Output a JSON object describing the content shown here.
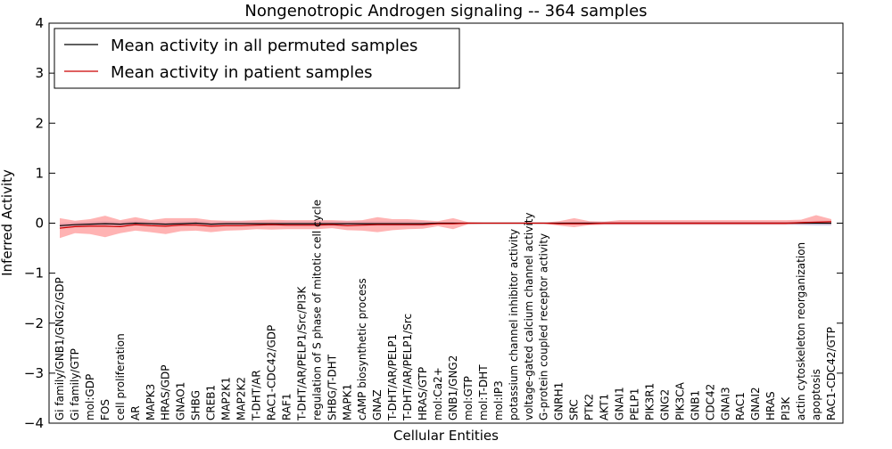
{
  "chart_data": {
    "type": "line",
    "title": "Nongenotropic Androgen signaling -- 364 samples",
    "xlabel": "Cellular Entities",
    "ylabel": "Inferred Activity",
    "ylim": [
      -4,
      4
    ],
    "yticks": [
      "−4",
      "−3",
      "−2",
      "−1",
      "0",
      "1",
      "2",
      "3",
      "4"
    ],
    "grid": false,
    "legend_position": "top-left",
    "categories": [
      "Gi family/GNB1/GNG2/GDP",
      "Gi family/GTP",
      "mol:GDP",
      "FOS",
      "cell proliferation",
      "AR",
      "MAPK3",
      "HRAS/GDP",
      "GNAO1",
      "SHBG",
      "CREB1",
      "MAP2K1",
      "MAP2K2",
      "T-DHT/AR",
      "RAC1-CDC42/GDP",
      "RAF1",
      "T-DHT/AR/PELP1/Src/PI3K",
      "regulation of S phase of mitotic cell cycle",
      "SHBG/T-DHT",
      "MAPK1",
      "cAMP biosynthetic process",
      "GNAZ",
      "T-DHT/AR/PELP1",
      "T-DHT/AR/PELP1/Src",
      "HRAS/GTP",
      "mol:Ca2+",
      "GNB1/GNG2",
      "mol:GTP",
      "mol:T-DHT",
      "mol:IP3",
      "potassium channel inhibitor activity",
      "voltage-gated calcium channel activity",
      "G-protein coupled receptor activity",
      "GNRH1",
      "SRC",
      "PTK2",
      "AKT1",
      "GNAI1",
      "PELP1",
      "PIK3R1",
      "GNG2",
      "PIK3CA",
      "GNB1",
      "CDC42",
      "GNAI3",
      "RAC1",
      "GNAI2",
      "HRAS",
      "PI3K",
      "actin cytoskeleton reorganization",
      "apoptosis",
      "RAC1-CDC42/GTP"
    ],
    "series": [
      {
        "name": "Mean activity in all permuted samples",
        "color": "#000000",
        "band_color": "#8c8ccc",
        "values": [
          -0.05,
          -0.03,
          -0.02,
          -0.01,
          -0.02,
          0.0,
          -0.01,
          -0.02,
          -0.01,
          0.0,
          -0.02,
          -0.01,
          -0.01,
          -0.01,
          -0.01,
          -0.01,
          -0.01,
          -0.01,
          -0.01,
          -0.01,
          -0.01,
          -0.01,
          -0.01,
          -0.01,
          -0.01,
          0.0,
          0.0,
          0.0,
          0.0,
          0.0,
          0.0,
          0.0,
          0.0,
          0.0,
          0.0,
          0.0,
          0.0,
          0.0,
          0.0,
          0.0,
          0.0,
          0.0,
          0.0,
          0.0,
          0.0,
          0.0,
          0.0,
          0.0,
          0.0,
          0.0,
          0.0,
          0.0
        ],
        "lower": [
          -0.1,
          -0.08,
          -0.07,
          -0.06,
          -0.07,
          -0.05,
          -0.06,
          -0.07,
          -0.06,
          -0.05,
          -0.06,
          -0.06,
          -0.06,
          -0.06,
          -0.06,
          -0.06,
          -0.06,
          -0.06,
          -0.06,
          -0.06,
          -0.06,
          -0.06,
          -0.06,
          -0.06,
          -0.06,
          -0.02,
          -0.02,
          -0.01,
          -0.01,
          -0.01,
          -0.01,
          -0.01,
          -0.01,
          -0.02,
          -0.03,
          -0.03,
          -0.03,
          -0.03,
          -0.03,
          -0.03,
          -0.03,
          -0.03,
          -0.03,
          -0.03,
          -0.03,
          -0.03,
          -0.03,
          -0.03,
          -0.03,
          -0.04,
          -0.05,
          -0.05
        ],
        "upper": [
          0.0,
          0.02,
          0.03,
          0.04,
          0.03,
          0.05,
          0.04,
          0.03,
          0.04,
          0.05,
          0.03,
          0.04,
          0.04,
          0.04,
          0.04,
          0.04,
          0.04,
          0.04,
          0.04,
          0.04,
          0.04,
          0.04,
          0.04,
          0.04,
          0.04,
          0.02,
          0.02,
          0.01,
          0.01,
          0.01,
          0.01,
          0.01,
          0.01,
          0.02,
          0.03,
          0.03,
          0.03,
          0.03,
          0.03,
          0.03,
          0.03,
          0.03,
          0.03,
          0.03,
          0.03,
          0.03,
          0.03,
          0.03,
          0.03,
          0.04,
          0.05,
          0.05
        ]
      },
      {
        "name": "Mean activity in patient samples",
        "color": "#cc0000",
        "band_color": "#ff8080",
        "values": [
          -0.1,
          -0.07,
          -0.06,
          -0.06,
          -0.07,
          -0.03,
          -0.05,
          -0.06,
          -0.04,
          -0.04,
          -0.06,
          -0.05,
          -0.05,
          -0.04,
          -0.03,
          -0.04,
          -0.04,
          -0.04,
          -0.03,
          -0.05,
          -0.04,
          -0.03,
          -0.03,
          -0.03,
          -0.03,
          -0.01,
          -0.01,
          0.0,
          0.0,
          0.0,
          0.0,
          0.0,
          0.0,
          -0.01,
          -0.01,
          -0.01,
          0.0,
          0.0,
          0.0,
          0.0,
          0.0,
          0.0,
          0.0,
          0.0,
          0.0,
          0.0,
          0.0,
          0.0,
          0.0,
          0.01,
          0.02,
          0.03
        ],
        "lower": [
          -0.3,
          -0.2,
          -0.22,
          -0.28,
          -0.2,
          -0.15,
          -0.18,
          -0.22,
          -0.16,
          -0.15,
          -0.18,
          -0.15,
          -0.14,
          -0.12,
          -0.13,
          -0.12,
          -0.12,
          -0.12,
          -0.1,
          -0.14,
          -0.15,
          -0.18,
          -0.14,
          -0.12,
          -0.11,
          -0.06,
          -0.12,
          -0.02,
          -0.01,
          -0.01,
          -0.01,
          -0.01,
          -0.01,
          -0.05,
          -0.08,
          -0.04,
          -0.03,
          -0.03,
          -0.03,
          -0.03,
          -0.03,
          -0.03,
          -0.03,
          -0.03,
          -0.03,
          -0.03,
          -0.03,
          -0.03,
          -0.03,
          -0.02,
          -0.01,
          -0.02
        ],
        "upper": [
          0.1,
          0.05,
          0.08,
          0.15,
          0.06,
          0.12,
          0.06,
          0.1,
          0.1,
          0.1,
          0.06,
          0.05,
          0.05,
          0.06,
          0.07,
          0.06,
          0.06,
          0.06,
          0.06,
          0.05,
          0.06,
          0.12,
          0.08,
          0.08,
          0.06,
          0.04,
          0.1,
          0.02,
          0.01,
          0.01,
          0.01,
          0.01,
          0.01,
          0.04,
          0.1,
          0.04,
          0.03,
          0.06,
          0.06,
          0.06,
          0.06,
          0.06,
          0.06,
          0.06,
          0.06,
          0.06,
          0.06,
          0.06,
          0.06,
          0.07,
          0.16,
          0.08
        ]
      }
    ]
  }
}
